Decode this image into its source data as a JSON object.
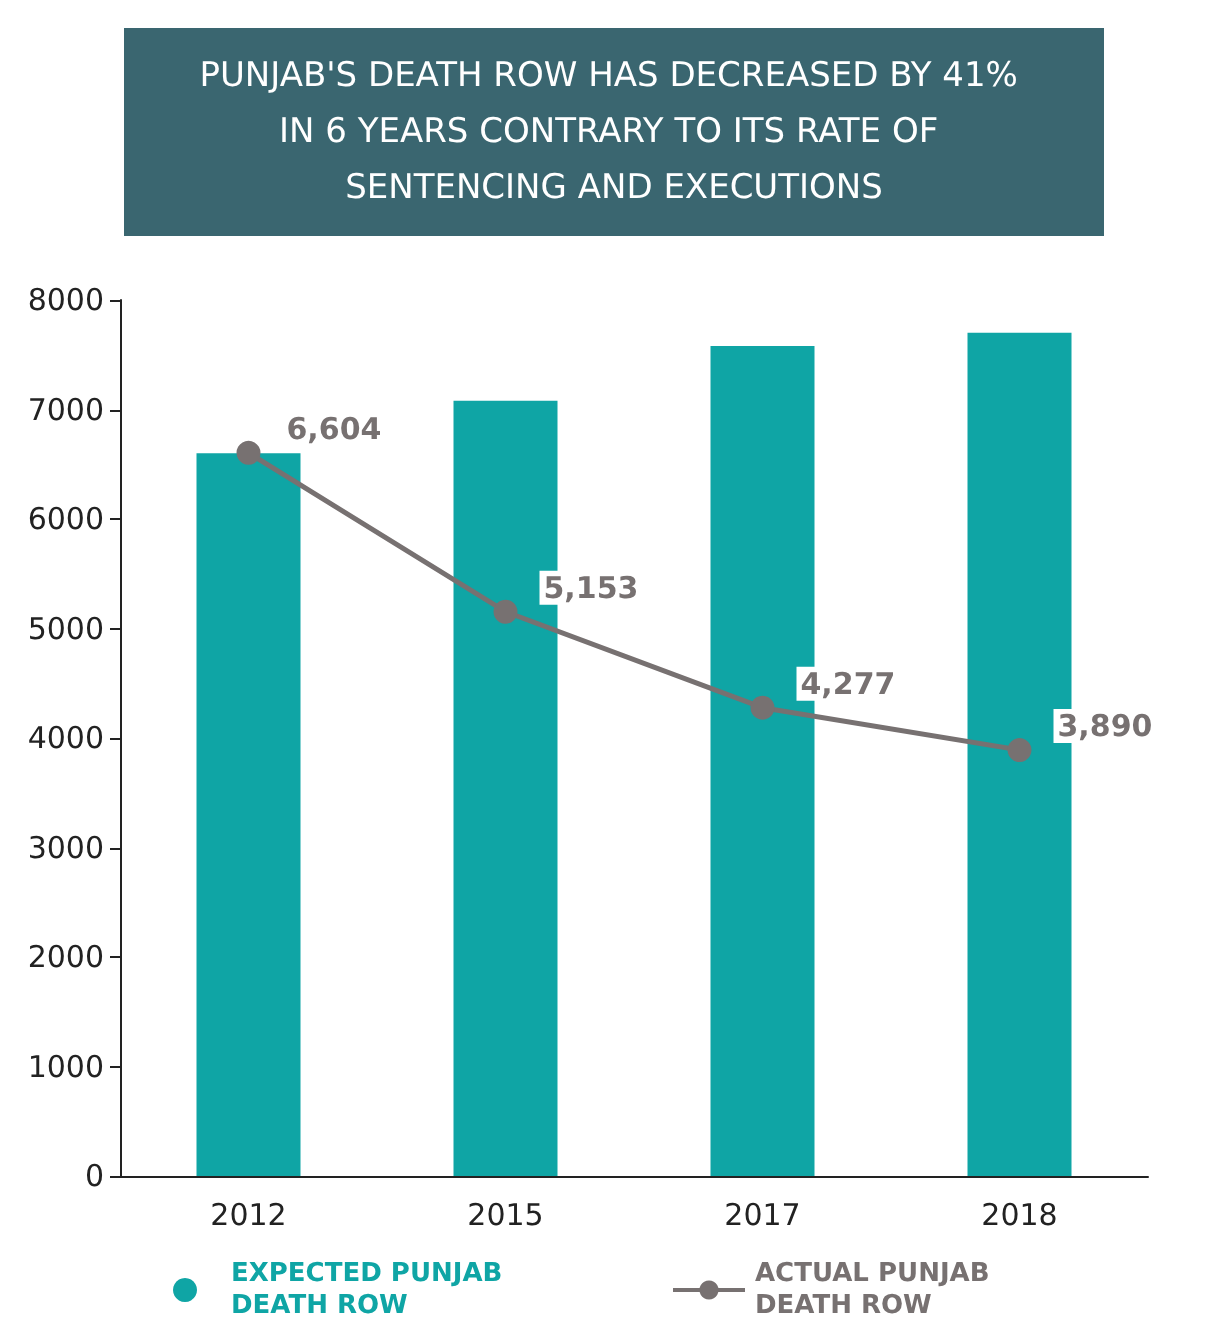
{
  "chart_data": {
    "type": "bar",
    "title": "PUNJAB'S DEATH ROW HAS DECREASED BY 41% IN 6 YEARS CONTRARY TO ITS RATE OF SENTENCING AND EXECUTIONS",
    "categories": [
      "2012",
      "2015",
      "2017",
      "2018"
    ],
    "series": [
      {
        "name": "EXPECTED PUNJAB DEATH ROW",
        "color": "#0fa5a5",
        "values": [
          6600,
          7080,
          7580,
          7700
        ]
      },
      {
        "name": "ACTUAL PUNJAB DEATH ROW",
        "type": "line",
        "color": "#777171",
        "values": [
          6604,
          5153,
          4277,
          3890
        ],
        "value_labels": [
          "6,604",
          "5,153",
          "4,277",
          "3,890"
        ]
      }
    ],
    "ylim": [
      0,
      8000
    ],
    "yticks": [
      0,
      1000,
      2000,
      3000,
      4000,
      5000,
      6000,
      7000,
      8000
    ],
    "grid": false,
    "legend": "bottom",
    "marker": "circle",
    "line_style": "solid"
  }
}
